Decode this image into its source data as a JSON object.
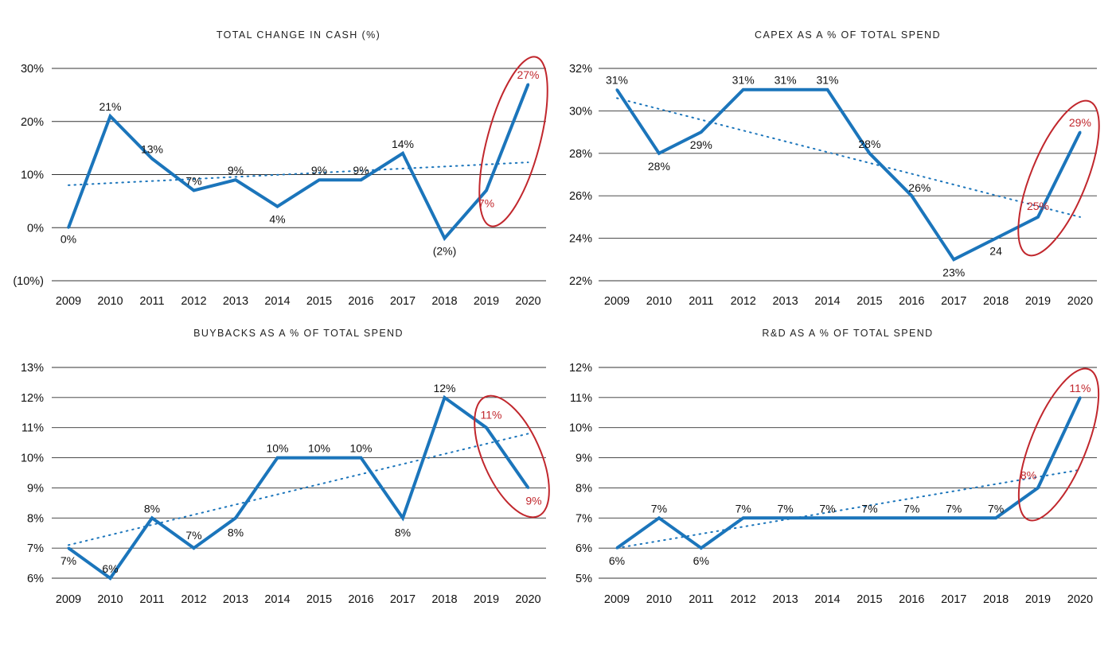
{
  "colors": {
    "series": "#1b75bb",
    "trend": "#1b75bb",
    "highlight": "#c1272d",
    "grid": "#333333",
    "text": "#111111"
  },
  "chart_data": [
    {
      "type": "line",
      "title": "TOTAL CHANGE IN CASH (%)",
      "categories": [
        "2009",
        "2010",
        "2011",
        "2012",
        "2013",
        "2014",
        "2015",
        "2016",
        "2017",
        "2018",
        "2019",
        "2020"
      ],
      "y_ticks": [
        "30%",
        "20%",
        "10%",
        "0%",
        "(10%)"
      ],
      "ylim": [
        -10,
        30
      ],
      "series": [
        {
          "values": [
            0,
            21,
            13,
            7,
            9,
            4,
            9,
            9,
            14,
            -2,
            7,
            27
          ]
        }
      ],
      "trendline": {
        "style": "dotted",
        "start": 8,
        "end": 12.3
      },
      "data_labels": [
        "0%",
        "21%",
        "13%",
        "7%",
        "9%",
        "4%",
        "9%",
        "9%",
        "14%",
        "(2%)",
        "7%",
        "27%"
      ],
      "highlighted": [
        "2019",
        "2020"
      ],
      "grid": true
    },
    {
      "type": "line",
      "title": "CAPEX AS A % OF TOTAL SPEND",
      "categories": [
        "2009",
        "2010",
        "2011",
        "2012",
        "2013",
        "2014",
        "2015",
        "2016",
        "2017",
        "2018",
        "2019",
        "2020"
      ],
      "y_ticks": [
        "32%",
        "30%",
        "28%",
        "26%",
        "24%",
        "22%"
      ],
      "ylim": [
        22,
        32
      ],
      "series": [
        {
          "values": [
            31,
            28,
            29,
            31,
            31,
            31,
            28,
            26,
            23,
            24,
            25,
            29
          ]
        }
      ],
      "trendline": {
        "style": "dotted",
        "start": 30.6,
        "end": 25
      },
      "data_labels": [
        "31%",
        "28%",
        "29%",
        "31%",
        "31%",
        "31%",
        "28%",
        "26%",
        "23%",
        "24",
        "25%",
        "29%"
      ],
      "highlighted": [
        "2019",
        "2020"
      ],
      "grid": true
    },
    {
      "type": "line",
      "title": "BUYBACKS AS A % OF TOTAL SPEND",
      "categories": [
        "2009",
        "2010",
        "2011",
        "2012",
        "2013",
        "2014",
        "2015",
        "2016",
        "2017",
        "2018",
        "2019",
        "2020"
      ],
      "y_ticks": [
        "13%",
        "12%",
        "11%",
        "10%",
        "9%",
        "8%",
        "7%",
        "6%"
      ],
      "ylim": [
        6,
        13
      ],
      "series": [
        {
          "values": [
            7,
            6,
            8,
            7,
            8,
            10,
            10,
            10,
            8,
            12,
            11,
            9
          ]
        }
      ],
      "trendline": {
        "style": "dotted",
        "start": 7.1,
        "end": 10.8
      },
      "data_labels": [
        "7%",
        "6%",
        "8%",
        "7%",
        "8%",
        "10%",
        "10%",
        "10%",
        "8%",
        "12%",
        "11%",
        "9%"
      ],
      "highlighted": [
        "2019",
        "2020"
      ],
      "grid": true
    },
    {
      "type": "line",
      "title": "R&D AS A % OF TOTAL SPEND",
      "categories": [
        "2009",
        "2010",
        "2011",
        "2012",
        "2013",
        "2014",
        "2015",
        "2016",
        "2017",
        "2018",
        "2019",
        "2020"
      ],
      "y_ticks": [
        "12%",
        "11%",
        "10%",
        "9%",
        "8%",
        "7%",
        "6%",
        "5%"
      ],
      "ylim": [
        5,
        12
      ],
      "series": [
        {
          "values": [
            6,
            7,
            6,
            7,
            7,
            7,
            7,
            7,
            7,
            7,
            8,
            11
          ]
        }
      ],
      "trendline": {
        "style": "dotted",
        "start": 6,
        "end": 8.6
      },
      "data_labels": [
        "6%",
        "7%",
        "6%",
        "7%",
        "7%",
        "7%",
        "7%",
        "7%",
        "7%",
        "7%",
        "8%",
        "11%"
      ],
      "highlighted": [
        "2019",
        "2020"
      ],
      "grid": true
    }
  ]
}
